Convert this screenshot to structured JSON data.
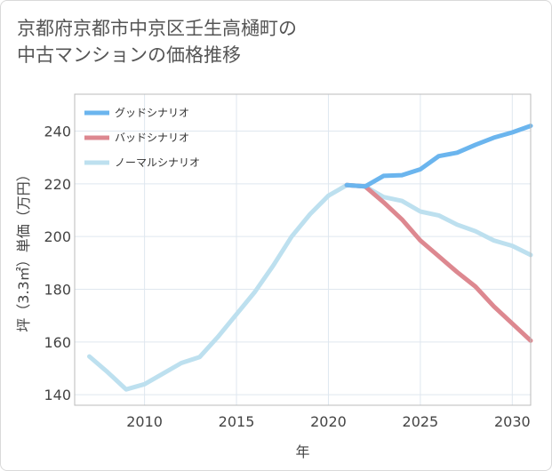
{
  "title_lines": [
    "京都府京都市中京区壬生高樋町の",
    "中古マンションの価格推移"
  ],
  "chart_data": {
    "type": "line",
    "xlabel": "年",
    "ylabel": "坪（3.3㎡）単価（万円）",
    "xlim": [
      2006.2,
      2031
    ],
    "ylim": [
      136,
      254
    ],
    "xticks": [
      2010,
      2015,
      2020,
      2025,
      2030
    ],
    "yticks": [
      140,
      160,
      180,
      200,
      220,
      240
    ],
    "grid": true,
    "legend_position": "top-left",
    "series": [
      {
        "name": "グッドシナリオ",
        "color": "#6bb5ee",
        "x": [
          2021,
          2022,
          2023,
          2024,
          2025,
          2026,
          2027,
          2028,
          2029,
          2030,
          2031
        ],
        "y": [
          219.5,
          219,
          223,
          223.3,
          225.5,
          230.5,
          231.8,
          234.8,
          237.5,
          239.5,
          242
        ]
      },
      {
        "name": "バッドシナリオ",
        "color": "#dd8890",
        "x": [
          2021,
          2022,
          2023,
          2024,
          2025,
          2026,
          2027,
          2028,
          2029,
          2030,
          2031
        ],
        "y": [
          219.5,
          219,
          213,
          206.5,
          198.5,
          192.5,
          186.5,
          181,
          173.5,
          167,
          160.5
        ]
      },
      {
        "name": "ノーマルシナリオ",
        "color": "#bde0ef",
        "x": [
          2007,
          2008,
          2009,
          2010,
          2011,
          2012,
          2013,
          2014,
          2015,
          2016,
          2017,
          2018,
          2019,
          2020,
          2021,
          2022,
          2023,
          2024,
          2025,
          2026,
          2027,
          2028,
          2029,
          2030,
          2031
        ],
        "y": [
          154.5,
          148.5,
          142,
          144,
          148,
          152,
          154.3,
          162,
          170.5,
          179,
          189,
          200,
          208.5,
          215.5,
          219.5,
          219,
          215,
          213.5,
          209.5,
          208,
          204.5,
          202,
          198.5,
          196.5,
          193
        ]
      }
    ]
  }
}
